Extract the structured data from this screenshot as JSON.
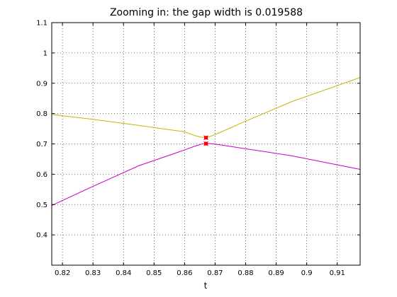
{
  "chart_data": {
    "type": "line",
    "title": "Zooming in: the gap width is 0.019588",
    "xlabel": "t",
    "ylabel": "",
    "xlim": [
      0.8165,
      0.9175
    ],
    "ylim": [
      0.3,
      1.1
    ],
    "xticks": [
      0.82,
      0.83,
      0.84,
      0.85,
      0.86,
      0.87,
      0.88,
      0.89,
      0.9,
      0.91
    ],
    "xtick_labels": [
      "0.82",
      "0.83",
      "0.84",
      "0.85",
      "0.86",
      "0.87",
      "0.88",
      "0.89",
      "0.9",
      "0.91"
    ],
    "yticks": [
      0.4,
      0.5,
      0.6,
      0.7,
      0.8,
      0.9,
      1.0,
      1.1
    ],
    "ytick_labels": [
      "0.4",
      "0.5",
      "0.6",
      "0.7",
      "0.8",
      "0.9",
      "1",
      "1.1"
    ],
    "grid": true,
    "series": [
      {
        "color": "#c8b400",
        "x": [
          0.8165,
          0.83,
          0.845,
          0.86,
          0.8635,
          0.8655,
          0.867,
          0.8685,
          0.871,
          0.88,
          0.895,
          0.9175
        ],
        "y": [
          0.797,
          0.781,
          0.761,
          0.74,
          0.727,
          0.722,
          0.721,
          0.725,
          0.735,
          0.775,
          0.839,
          0.919
        ]
      },
      {
        "color": "#c800c8",
        "x": [
          0.8165,
          0.83,
          0.845,
          0.86,
          0.8635,
          0.8655,
          0.867,
          0.8685,
          0.871,
          0.88,
          0.895,
          0.9175
        ],
        "y": [
          0.497,
          0.56,
          0.628,
          0.68,
          0.693,
          0.699,
          0.702,
          0.701,
          0.698,
          0.684,
          0.661,
          0.616
        ]
      }
    ],
    "markers": {
      "color": "#ff0000",
      "points": [
        {
          "x": 0.867,
          "y": 0.7205
        },
        {
          "x": 0.867,
          "y": 0.7009
        }
      ]
    }
  }
}
